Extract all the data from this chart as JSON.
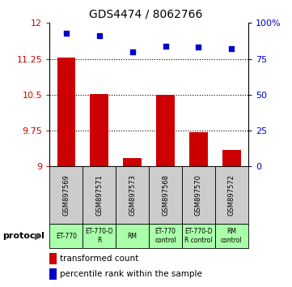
{
  "title": "GDS4474 / 8062766",
  "samples": [
    "GSM897569",
    "GSM897571",
    "GSM897573",
    "GSM897568",
    "GSM897570",
    "GSM897572"
  ],
  "transformed_counts": [
    11.28,
    10.52,
    9.18,
    10.49,
    9.72,
    9.35
  ],
  "percentile_ranks": [
    93,
    91,
    80,
    84,
    83,
    82
  ],
  "ylim_left": [
    9,
    12
  ],
  "ylim_right": [
    0,
    100
  ],
  "yticks_left": [
    9,
    9.75,
    10.5,
    11.25,
    12
  ],
  "yticks_right": [
    0,
    25,
    50,
    75,
    100
  ],
  "ytick_labels_right": [
    "0",
    "25",
    "50",
    "75",
    "100%"
  ],
  "bar_color": "#cc0000",
  "scatter_color": "#0000cc",
  "protocol_labels": [
    "ET-770",
    "ET-770-D\nR",
    "RM",
    "ET-770\ncontrol",
    "ET-770-D\nR control",
    "RM\ncontrol"
  ],
  "protocol_bg_color": "#aaffaa",
  "sample_bg_color": "#cccccc",
  "legend_bar_label": "transformed count",
  "legend_scatter_label": "percentile rank within the sample",
  "protocol_text": "protocol",
  "figsize": [
    3.61,
    3.54
  ],
  "dpi": 100
}
